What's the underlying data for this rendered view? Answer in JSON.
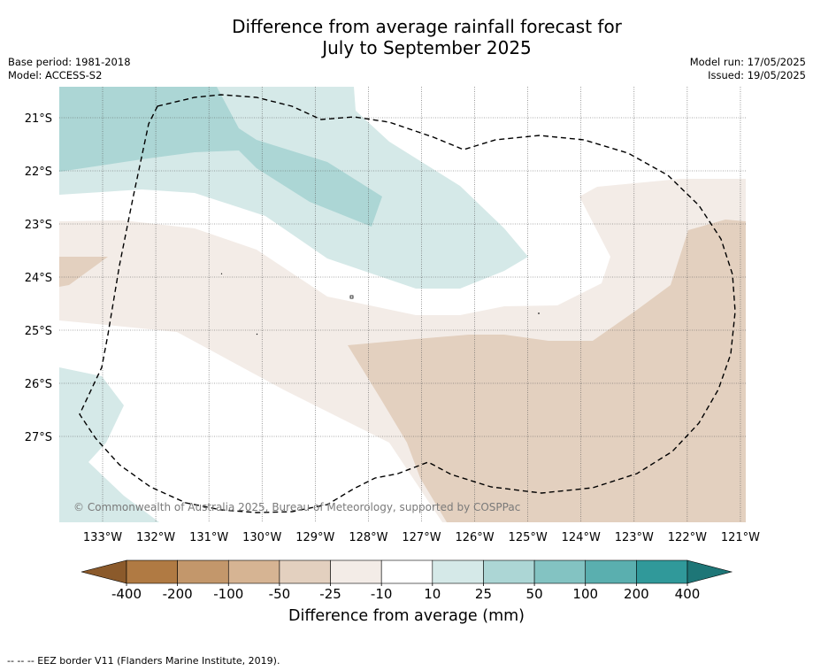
{
  "title": {
    "line1": "Difference from average rainfall forecast for",
    "line2": "July to September 2025"
  },
  "meta": {
    "base_period": "Base period: 1981-2018",
    "model": "Model: ACCESS-S2",
    "model_run": "Model run: 17/05/2025",
    "issued": "Issued: 19/05/2025"
  },
  "map": {
    "latitude_labels": [
      "21°S",
      "22°S",
      "23°S",
      "24°S",
      "25°S",
      "26°S",
      "27°S"
    ],
    "longitude_labels": [
      "133°W",
      "132°W",
      "131°W",
      "130°W",
      "129°W",
      "128°W",
      "127°W",
      "126°W",
      "125°W",
      "124°W",
      "123°W",
      "122°W",
      "121°W"
    ],
    "copyright": "© Commonwealth of Australia 2025, Bureau of Meteorology, supported by COSPPac",
    "border_line_style": "dashed",
    "grid": "dotted"
  },
  "colorbar": {
    "tick_labels": [
      "-400",
      "-200",
      "-100",
      "-50",
      "-25",
      "-10",
      "10",
      "25",
      "50",
      "100",
      "200",
      "400"
    ],
    "colors": [
      "#8b5a2b",
      "#b07a43",
      "#c3976b",
      "#d6b493",
      "#e3d0bf",
      "#f3ece7",
      "#ffffff",
      "#d5e9e8",
      "#acd6d5",
      "#83c3c2",
      "#5aafaf",
      "#30999a",
      "#1e7677"
    ],
    "label": "Difference from average (mm)"
  },
  "footnote": "--  --  -- EEZ border V11 (Flanders Marine Institute, 2019)."
}
